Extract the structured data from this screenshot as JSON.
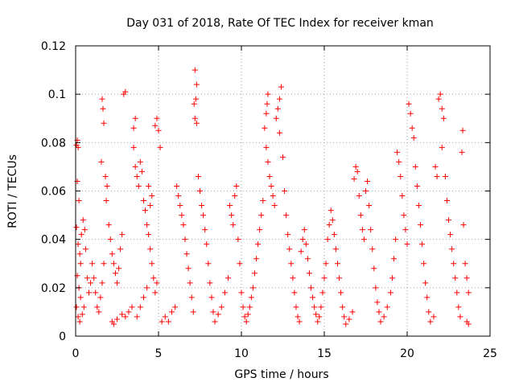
{
  "chart_data": {
    "type": "scatter",
    "title": "Day 031 of 2018, Rate Of TEC Index for receiver kman",
    "xlabel": "GPS time / hours",
    "ylabel": "ROTI / TECUs",
    "xlim": [
      0,
      25
    ],
    "ylim": [
      0,
      0.12
    ],
    "xticks": [
      0,
      5,
      10,
      15,
      20,
      25
    ],
    "xtick_labels": [
      "0",
      "5",
      "10",
      "15",
      "20",
      "25"
    ],
    "yticks": [
      0,
      0.02,
      0.04,
      0.06,
      0.08,
      0.1,
      0.12
    ],
    "ytick_labels": [
      "0",
      "0.02",
      "0.04",
      "0.06",
      "0.08",
      "0.1",
      "0.12"
    ],
    "grid": true,
    "marker": "plus",
    "color": "#ff0000",
    "series": [
      {
        "name": "ROTI",
        "points": [
          [
            0.05,
            0.079
          ],
          [
            0.1,
            0.081
          ],
          [
            0.15,
            0.078
          ],
          [
            0.1,
            0.064
          ],
          [
            0.2,
            0.056
          ],
          [
            0.05,
            0.045
          ],
          [
            0.15,
            0.038
          ],
          [
            0.25,
            0.034
          ],
          [
            0.3,
            0.03
          ],
          [
            0.1,
            0.025
          ],
          [
            0.2,
            0.02
          ],
          [
            0.3,
            0.016
          ],
          [
            0.05,
            0.012
          ],
          [
            0.15,
            0.008
          ],
          [
            0.25,
            0.006
          ],
          [
            0.4,
            0.009
          ],
          [
            0.5,
            0.012
          ],
          [
            0.35,
            0.042
          ],
          [
            0.45,
            0.048
          ],
          [
            0.55,
            0.044
          ],
          [
            0.6,
            0.036
          ],
          [
            0.7,
            0.024
          ],
          [
            0.8,
            0.018
          ],
          [
            0.9,
            0.022
          ],
          [
            1.0,
            0.03
          ],
          [
            1.1,
            0.024
          ],
          [
            1.2,
            0.018
          ],
          [
            1.3,
            0.012
          ],
          [
            1.4,
            0.01
          ],
          [
            1.5,
            0.016
          ],
          [
            1.6,
            0.022
          ],
          [
            1.7,
            0.03
          ],
          [
            1.6,
            0.098
          ],
          [
            1.65,
            0.094
          ],
          [
            1.7,
            0.088
          ],
          [
            1.55,
            0.072
          ],
          [
            1.8,
            0.066
          ],
          [
            1.9,
            0.062
          ],
          [
            1.85,
            0.056
          ],
          [
            2.0,
            0.046
          ],
          [
            2.1,
            0.04
          ],
          [
            2.2,
            0.034
          ],
          [
            2.3,
            0.03
          ],
          [
            2.4,
            0.026
          ],
          [
            2.5,
            0.022
          ],
          [
            2.6,
            0.028
          ],
          [
            2.7,
            0.036
          ],
          [
            2.8,
            0.042
          ],
          [
            2.9,
            0.1
          ],
          [
            3.0,
            0.101
          ],
          [
            2.2,
            0.006
          ],
          [
            2.3,
            0.005
          ],
          [
            2.5,
            0.007
          ],
          [
            2.8,
            0.009
          ],
          [
            3.0,
            0.008
          ],
          [
            3.2,
            0.01
          ],
          [
            3.4,
            0.012
          ],
          [
            3.5,
            0.086
          ],
          [
            3.6,
            0.09
          ],
          [
            3.5,
            0.078
          ],
          [
            3.6,
            0.07
          ],
          [
            3.7,
            0.066
          ],
          [
            3.8,
            0.062
          ],
          [
            3.9,
            0.072
          ],
          [
            4.0,
            0.068
          ],
          [
            4.1,
            0.056
          ],
          [
            4.2,
            0.052
          ],
          [
            4.3,
            0.046
          ],
          [
            4.4,
            0.042
          ],
          [
            4.5,
            0.036
          ],
          [
            4.6,
            0.03
          ],
          [
            4.7,
            0.024
          ],
          [
            4.8,
            0.018
          ],
          [
            4.9,
            0.022
          ],
          [
            4.8,
            0.087
          ],
          [
            4.9,
            0.09
          ],
          [
            5.0,
            0.085
          ],
          [
            5.1,
            0.078
          ],
          [
            4.6,
            0.058
          ],
          [
            4.5,
            0.054
          ],
          [
            4.4,
            0.062
          ],
          [
            3.7,
            0.008
          ],
          [
            3.9,
            0.012
          ],
          [
            4.1,
            0.016
          ],
          [
            4.3,
            0.02
          ],
          [
            5.2,
            0.006
          ],
          [
            5.4,
            0.008
          ],
          [
            5.6,
            0.006
          ],
          [
            5.8,
            0.01
          ],
          [
            6.0,
            0.012
          ],
          [
            6.1,
            0.062
          ],
          [
            6.2,
            0.058
          ],
          [
            6.3,
            0.054
          ],
          [
            6.4,
            0.05
          ],
          [
            6.5,
            0.046
          ],
          [
            6.6,
            0.04
          ],
          [
            6.7,
            0.034
          ],
          [
            6.8,
            0.028
          ],
          [
            6.9,
            0.022
          ],
          [
            7.0,
            0.016
          ],
          [
            7.1,
            0.01
          ],
          [
            7.2,
            0.11
          ],
          [
            7.3,
            0.104
          ],
          [
            7.25,
            0.098
          ],
          [
            7.2,
            0.09
          ],
          [
            7.15,
            0.096
          ],
          [
            7.3,
            0.088
          ],
          [
            7.4,
            0.066
          ],
          [
            7.5,
            0.06
          ],
          [
            7.6,
            0.054
          ],
          [
            7.7,
            0.05
          ],
          [
            7.8,
            0.044
          ],
          [
            7.9,
            0.038
          ],
          [
            8.0,
            0.03
          ],
          [
            8.1,
            0.022
          ],
          [
            8.2,
            0.016
          ],
          [
            8.3,
            0.01
          ],
          [
            8.4,
            0.006
          ],
          [
            8.6,
            0.009
          ],
          [
            8.8,
            0.012
          ],
          [
            9.0,
            0.018
          ],
          [
            9.2,
            0.024
          ],
          [
            9.3,
            0.054
          ],
          [
            9.4,
            0.05
          ],
          [
            9.5,
            0.046
          ],
          [
            9.6,
            0.058
          ],
          [
            9.7,
            0.062
          ],
          [
            9.8,
            0.04
          ],
          [
            9.9,
            0.03
          ],
          [
            10.0,
            0.018
          ],
          [
            10.1,
            0.012
          ],
          [
            10.2,
            0.008
          ],
          [
            10.3,
            0.006
          ],
          [
            10.4,
            0.009
          ],
          [
            10.5,
            0.012
          ],
          [
            10.6,
            0.016
          ],
          [
            10.7,
            0.02
          ],
          [
            10.8,
            0.026
          ],
          [
            10.9,
            0.032
          ],
          [
            11.0,
            0.038
          ],
          [
            11.1,
            0.044
          ],
          [
            11.2,
            0.05
          ],
          [
            11.3,
            0.056
          ],
          [
            11.4,
            0.086
          ],
          [
            11.5,
            0.092
          ],
          [
            11.6,
            0.1
          ],
          [
            11.55,
            0.096
          ],
          [
            11.5,
            0.078
          ],
          [
            11.6,
            0.072
          ],
          [
            11.7,
            0.066
          ],
          [
            11.8,
            0.062
          ],
          [
            11.9,
            0.058
          ],
          [
            12.0,
            0.054
          ],
          [
            12.1,
            0.09
          ],
          [
            12.2,
            0.094
          ],
          [
            12.3,
            0.098
          ],
          [
            12.4,
            0.103
          ],
          [
            12.3,
            0.084
          ],
          [
            12.5,
            0.074
          ],
          [
            12.6,
            0.06
          ],
          [
            12.7,
            0.05
          ],
          [
            12.8,
            0.042
          ],
          [
            12.9,
            0.036
          ],
          [
            13.0,
            0.03
          ],
          [
            13.1,
            0.024
          ],
          [
            13.2,
            0.018
          ],
          [
            13.3,
            0.012
          ],
          [
            13.4,
            0.008
          ],
          [
            13.5,
            0.006
          ],
          [
            13.6,
            0.035
          ],
          [
            13.7,
            0.04
          ],
          [
            13.8,
            0.044
          ],
          [
            13.9,
            0.038
          ],
          [
            14.0,
            0.032
          ],
          [
            14.1,
            0.026
          ],
          [
            14.2,
            0.02
          ],
          [
            14.3,
            0.016
          ],
          [
            14.4,
            0.012
          ],
          [
            14.5,
            0.009
          ],
          [
            14.6,
            0.006
          ],
          [
            14.7,
            0.008
          ],
          [
            14.8,
            0.012
          ],
          [
            14.9,
            0.018
          ],
          [
            15.0,
            0.024
          ],
          [
            15.1,
            0.03
          ],
          [
            15.2,
            0.04
          ],
          [
            15.3,
            0.046
          ],
          [
            15.4,
            0.052
          ],
          [
            15.5,
            0.048
          ],
          [
            15.6,
            0.042
          ],
          [
            15.7,
            0.036
          ],
          [
            15.8,
            0.03
          ],
          [
            15.9,
            0.024
          ],
          [
            16.0,
            0.018
          ],
          [
            16.1,
            0.012
          ],
          [
            16.2,
            0.008
          ],
          [
            16.3,
            0.005
          ],
          [
            16.5,
            0.007
          ],
          [
            16.7,
            0.01
          ],
          [
            16.8,
            0.065
          ],
          [
            16.9,
            0.07
          ],
          [
            17.0,
            0.068
          ],
          [
            17.1,
            0.058
          ],
          [
            17.2,
            0.05
          ],
          [
            17.3,
            0.044
          ],
          [
            17.4,
            0.04
          ],
          [
            17.5,
            0.06
          ],
          [
            17.6,
            0.064
          ],
          [
            17.7,
            0.054
          ],
          [
            17.8,
            0.044
          ],
          [
            17.9,
            0.036
          ],
          [
            18.0,
            0.028
          ],
          [
            18.1,
            0.02
          ],
          [
            18.2,
            0.014
          ],
          [
            18.3,
            0.01
          ],
          [
            18.4,
            0.006
          ],
          [
            18.6,
            0.008
          ],
          [
            18.8,
            0.012
          ],
          [
            19.0,
            0.018
          ],
          [
            19.1,
            0.024
          ],
          [
            19.2,
            0.032
          ],
          [
            19.3,
            0.04
          ],
          [
            19.4,
            0.076
          ],
          [
            19.5,
            0.072
          ],
          [
            19.6,
            0.066
          ],
          [
            19.7,
            0.058
          ],
          [
            19.8,
            0.05
          ],
          [
            19.9,
            0.044
          ],
          [
            20.0,
            0.038
          ],
          [
            20.1,
            0.096
          ],
          [
            20.2,
            0.092
          ],
          [
            20.3,
            0.086
          ],
          [
            20.4,
            0.082
          ],
          [
            20.5,
            0.07
          ],
          [
            20.6,
            0.062
          ],
          [
            20.7,
            0.054
          ],
          [
            20.8,
            0.046
          ],
          [
            20.9,
            0.038
          ],
          [
            21.0,
            0.03
          ],
          [
            21.1,
            0.022
          ],
          [
            21.2,
            0.016
          ],
          [
            21.3,
            0.01
          ],
          [
            21.4,
            0.006
          ],
          [
            21.6,
            0.008
          ],
          [
            21.7,
            0.07
          ],
          [
            21.8,
            0.066
          ],
          [
            21.9,
            0.098
          ],
          [
            22.0,
            0.1
          ],
          [
            22.1,
            0.094
          ],
          [
            22.2,
            0.09
          ],
          [
            22.1,
            0.078
          ],
          [
            22.3,
            0.066
          ],
          [
            22.4,
            0.056
          ],
          [
            22.5,
            0.048
          ],
          [
            22.6,
            0.042
          ],
          [
            22.7,
            0.036
          ],
          [
            22.8,
            0.03
          ],
          [
            22.9,
            0.024
          ],
          [
            23.0,
            0.018
          ],
          [
            23.1,
            0.012
          ],
          [
            23.2,
            0.008
          ],
          [
            23.3,
            0.076
          ],
          [
            23.35,
            0.085
          ],
          [
            23.4,
            0.046
          ],
          [
            23.5,
            0.03
          ],
          [
            23.6,
            0.024
          ],
          [
            23.7,
            0.018
          ],
          [
            23.6,
            0.006
          ],
          [
            23.7,
            0.005
          ]
        ]
      }
    ]
  }
}
